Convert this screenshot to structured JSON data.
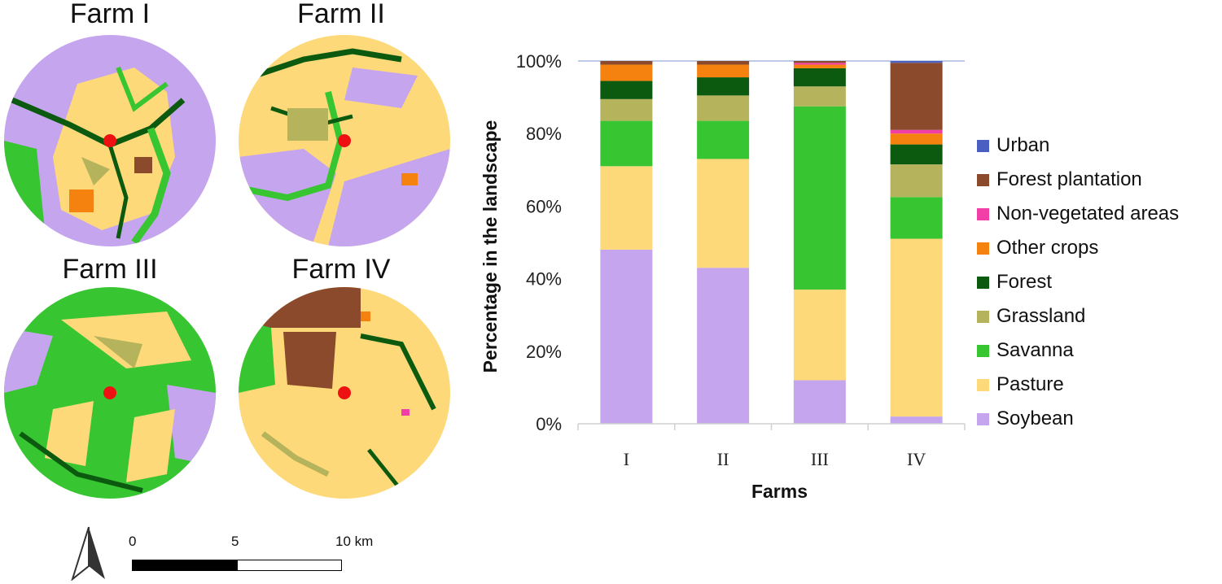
{
  "maps": [
    {
      "title": "Farm I"
    },
    {
      "title": "Farm II"
    },
    {
      "title": "Farm III"
    },
    {
      "title": "Farm IV"
    }
  ],
  "scale_bar": {
    "labels": [
      "0",
      "5",
      "10 km"
    ]
  },
  "colors": {
    "Urban": "#4a5fc1",
    "Forest plantation": "#8b4a2b",
    "Non-vegetated areas": "#f23fa8",
    "Other crops": "#f5820f",
    "Forest": "#0c5a0f",
    "Grassland": "#b5b35c",
    "Savanna": "#38c532",
    "Pasture": "#fdd97a",
    "Soybean": "#c5a5ee",
    "farm_point": "#ee1111",
    "axis_top_line": "#aab8de"
  },
  "chart_data": {
    "type": "bar",
    "stacked": true,
    "categories": [
      "I",
      "II",
      "III",
      "IV"
    ],
    "xlabel": "Farms",
    "ylabel": "Percentage in the landscape",
    "ylim": [
      0,
      100
    ],
    "yticks": [
      "0%",
      "20%",
      "40%",
      "60%",
      "80%",
      "100%"
    ],
    "legend": "right",
    "series": [
      {
        "name": "Soybean",
        "values": [
          48,
          43,
          12,
          2
        ]
      },
      {
        "name": "Pasture",
        "values": [
          23,
          30,
          25,
          49
        ]
      },
      {
        "name": "Savanna",
        "values": [
          12.5,
          10.5,
          50.5,
          11.5
        ]
      },
      {
        "name": "Grassland",
        "values": [
          6,
          7,
          5.5,
          9
        ]
      },
      {
        "name": "Forest",
        "values": [
          5,
          5,
          5,
          5.5
        ]
      },
      {
        "name": "Other crops",
        "values": [
          4.5,
          3.5,
          1,
          3
        ]
      },
      {
        "name": "Non-vegetated areas",
        "values": [
          0,
          0,
          0.5,
          1
        ]
      },
      {
        "name": "Forest plantation",
        "values": [
          1,
          1,
          0.5,
          18.5
        ]
      },
      {
        "name": "Urban",
        "values": [
          0,
          0,
          0,
          0.5
        ]
      }
    ],
    "legend_order": [
      "Urban",
      "Forest plantation",
      "Non-vegetated areas",
      "Other crops",
      "Forest",
      "Grassland",
      "Savanna",
      "Pasture",
      "Soybean"
    ]
  }
}
